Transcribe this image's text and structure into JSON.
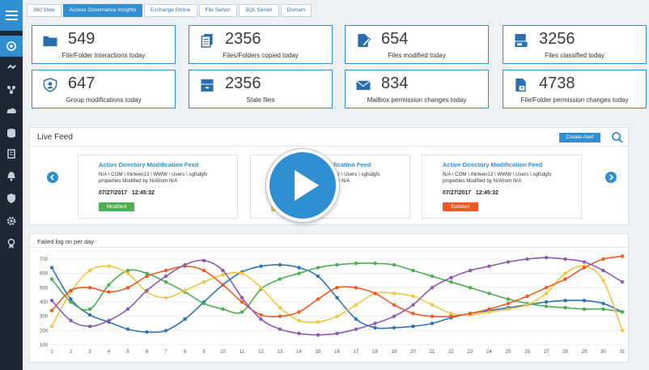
{
  "tabs": [
    "360 View",
    "Access Governance Insights",
    "Exchange Online",
    "File Server",
    "SQL Server",
    "Domain"
  ],
  "active_tab": 1,
  "sidebar": {
    "menu_icon": "hamburger-menu-icon",
    "icons": [
      "dashboard-icon",
      "link-icon",
      "network-icon",
      "cloud-icon",
      "database-icon",
      "report-icon",
      "bell-icon",
      "shield-icon",
      "gear-icon",
      "award-icon"
    ],
    "active_index": 0
  },
  "stats": [
    {
      "value": "549",
      "label": "File/Folder interactions today",
      "icon": "folder-icon"
    },
    {
      "value": "2356",
      "label": "Files/Folders copied today",
      "icon": "copy-files-icon"
    },
    {
      "value": "654",
      "label": "Files modified today",
      "icon": "file-edit-icon"
    },
    {
      "value": "3256",
      "label": "Files classified today",
      "icon": "classified-file-icon"
    },
    {
      "value": "647",
      "label": "Group modifications today",
      "icon": "group-shield-icon"
    },
    {
      "value": "2356",
      "label": "Stale files",
      "icon": "stale-files-icon"
    },
    {
      "value": "834",
      "label": "Mailbox permission changes today",
      "icon": "mailbox-icon"
    },
    {
      "value": "4738",
      "label": "File/Folder permission changes today",
      "icon": "file-permission-icon"
    }
  ],
  "live_feed": {
    "title": "Live Feed",
    "create_alert_label": "Create Alert",
    "cards": [
      {
        "title": "Active Directory Modification Feed",
        "desc": "N/A \\ COM \\ thirteen13 \\ WWW \\ Users \\ sgfsdgfs properties Modified by N/Afrom N/A",
        "date": "07/27/2017",
        "time": "12:45:32",
        "badge": "Modified",
        "badge_color": "#4caf50"
      },
      {
        "title": "Active Directory Modification Feed",
        "desc": "N/A \\ COM \\ thirteen13 \\ WWW \\ Users \\ sgfsdgfs properties Modified by N/Afrom N/A",
        "date": "07/27/2017",
        "time": "12:45:32",
        "badge": "Created",
        "badge_color": "#f4c542"
      },
      {
        "title": "Active Directory Modification Feed",
        "desc": "N/A \\ COM \\ thirteen13 \\ WWW \\ Users \\ sgfsdgfs properties Modified by N/Afrom N/A",
        "date": "07/27/2017",
        "time": "12:45:32",
        "badge": "Deleted",
        "badge_color": "#f05a22"
      }
    ]
  },
  "chart_data": {
    "type": "line",
    "title": "Failed log on per day",
    "x": [
      1,
      2,
      3,
      4,
      5,
      6,
      7,
      8,
      9,
      10,
      11,
      12,
      13,
      14,
      15,
      16,
      17,
      18,
      19,
      20,
      21,
      22,
      23,
      24,
      25,
      26,
      27,
      28,
      29,
      30,
      31
    ],
    "ylim": [
      100,
      700
    ],
    "yticks": [
      100,
      200,
      300,
      400,
      500,
      600,
      700
    ],
    "grid": true,
    "series": [
      {
        "color": "#2f73b5",
        "values": [
          640,
          420,
          310,
          260,
          210,
          190,
          200,
          280,
          400,
          520,
          610,
          650,
          660,
          640,
          580,
          430,
          280,
          220,
          220,
          230,
          250,
          290,
          320,
          340,
          360,
          380,
          400,
          410,
          410,
          390,
          330
        ]
      },
      {
        "color": "#4caf50",
        "values": [
          560,
          400,
          350,
          520,
          620,
          600,
          540,
          470,
          390,
          350,
          330,
          490,
          560,
          600,
          640,
          660,
          670,
          670,
          660,
          620,
          580,
          540,
          500,
          460,
          420,
          390,
          370,
          360,
          350,
          350,
          330
        ]
      },
      {
        "color": "#f4c542",
        "values": [
          230,
          470,
          620,
          650,
          600,
          470,
          430,
          480,
          540,
          590,
          600,
          500,
          360,
          270,
          260,
          300,
          380,
          460,
          460,
          440,
          380,
          320,
          310,
          330,
          350,
          380,
          460,
          600,
          650,
          550,
          200
        ]
      },
      {
        "color": "#f05a22",
        "values": [
          340,
          480,
          500,
          470,
          500,
          580,
          620,
          650,
          620,
          520,
          400,
          310,
          300,
          330,
          420,
          500,
          500,
          460,
          380,
          320,
          300,
          300,
          320,
          350,
          390,
          440,
          500,
          560,
          640,
          700,
          720
        ]
      },
      {
        "color": "#8e5ab5",
        "values": [
          410,
          270,
          230,
          270,
          350,
          480,
          580,
          660,
          690,
          620,
          430,
          280,
          210,
          180,
          170,
          180,
          210,
          250,
          300,
          380,
          500,
          570,
          620,
          650,
          680,
          700,
          710,
          700,
          680,
          620,
          540
        ]
      }
    ]
  }
}
